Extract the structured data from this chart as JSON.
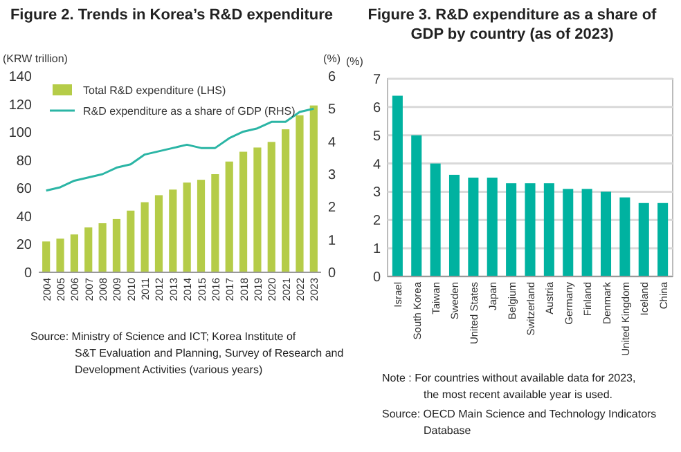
{
  "chart_data": [
    {
      "type": "bar",
      "title": "Figure 2. Trends in Korea’s R&D expenditure",
      "ylabel": "(KRW trillion)",
      "y2label": "(%)",
      "categories": [
        "2004",
        "2005",
        "2006",
        "2007",
        "2008",
        "2009",
        "2010",
        "2011",
        "2012",
        "2013",
        "2014",
        "2015",
        "2016",
        "2017",
        "2018",
        "2019",
        "2020",
        "2021",
        "2022",
        "2023"
      ],
      "series": [
        {
          "name": "Total R&D expenditure (LHS)",
          "type": "bar",
          "color": "#b5cc48",
          "values": [
            22,
            24,
            27,
            32,
            35,
            38,
            44,
            50,
            55,
            59,
            64,
            66,
            70,
            79,
            86,
            89,
            93,
            102,
            112,
            119
          ]
        },
        {
          "name": "R&D expenditure as a share of GDP (RHS)",
          "type": "line",
          "axis": "y2",
          "color": "#2bb5a5",
          "values": [
            2.5,
            2.6,
            2.8,
            2.9,
            3.0,
            3.2,
            3.3,
            3.6,
            3.7,
            3.8,
            3.9,
            3.8,
            3.8,
            4.1,
            4.3,
            4.4,
            4.6,
            4.6,
            4.9,
            5.0
          ]
        }
      ],
      "ylim": [
        0,
        140
      ],
      "yticks": [
        0,
        20,
        40,
        60,
        80,
        100,
        120,
        140
      ],
      "y2lim": [
        0,
        6
      ],
      "y2ticks": [
        0,
        1,
        2,
        3,
        4,
        5,
        6
      ],
      "legend": "top left",
      "grid": false,
      "marker": "none",
      "annotations": [
        "Source: Ministry of Science and ICT; Korea Institute of S&T Evaluation and Planning, Survey of Research and Development Activities (various years)"
      ]
    },
    {
      "type": "bar",
      "title": "Figure 3. R&D expenditure as a share of GDP by country (as of 2023)",
      "ylabel": "(%)",
      "categories": [
        "Israel",
        "South Korea",
        "Taiwan",
        "Sweden",
        "United States",
        "Japan",
        "Belgium",
        "Switzerland",
        "Austria",
        "Germany",
        "Finland",
        "Denmark",
        "United Kingdom",
        "Iceland",
        "China"
      ],
      "series": [
        {
          "color": "#00b2a0",
          "values": [
            6.4,
            5.0,
            4.0,
            3.6,
            3.5,
            3.5,
            3.3,
            3.3,
            3.3,
            3.1,
            3.1,
            3.0,
            2.8,
            2.6,
            2.6
          ]
        }
      ],
      "ylim": [
        0,
        7
      ],
      "yticks": [
        0,
        1,
        2,
        3,
        4,
        5,
        6,
        7
      ],
      "grid": "y",
      "legend": false,
      "annotations": [
        "Note : For countries without available data for 2023, the most recent available year is used.",
        "Source: OECD Main Science and Technology Indicators Database"
      ]
    }
  ]
}
